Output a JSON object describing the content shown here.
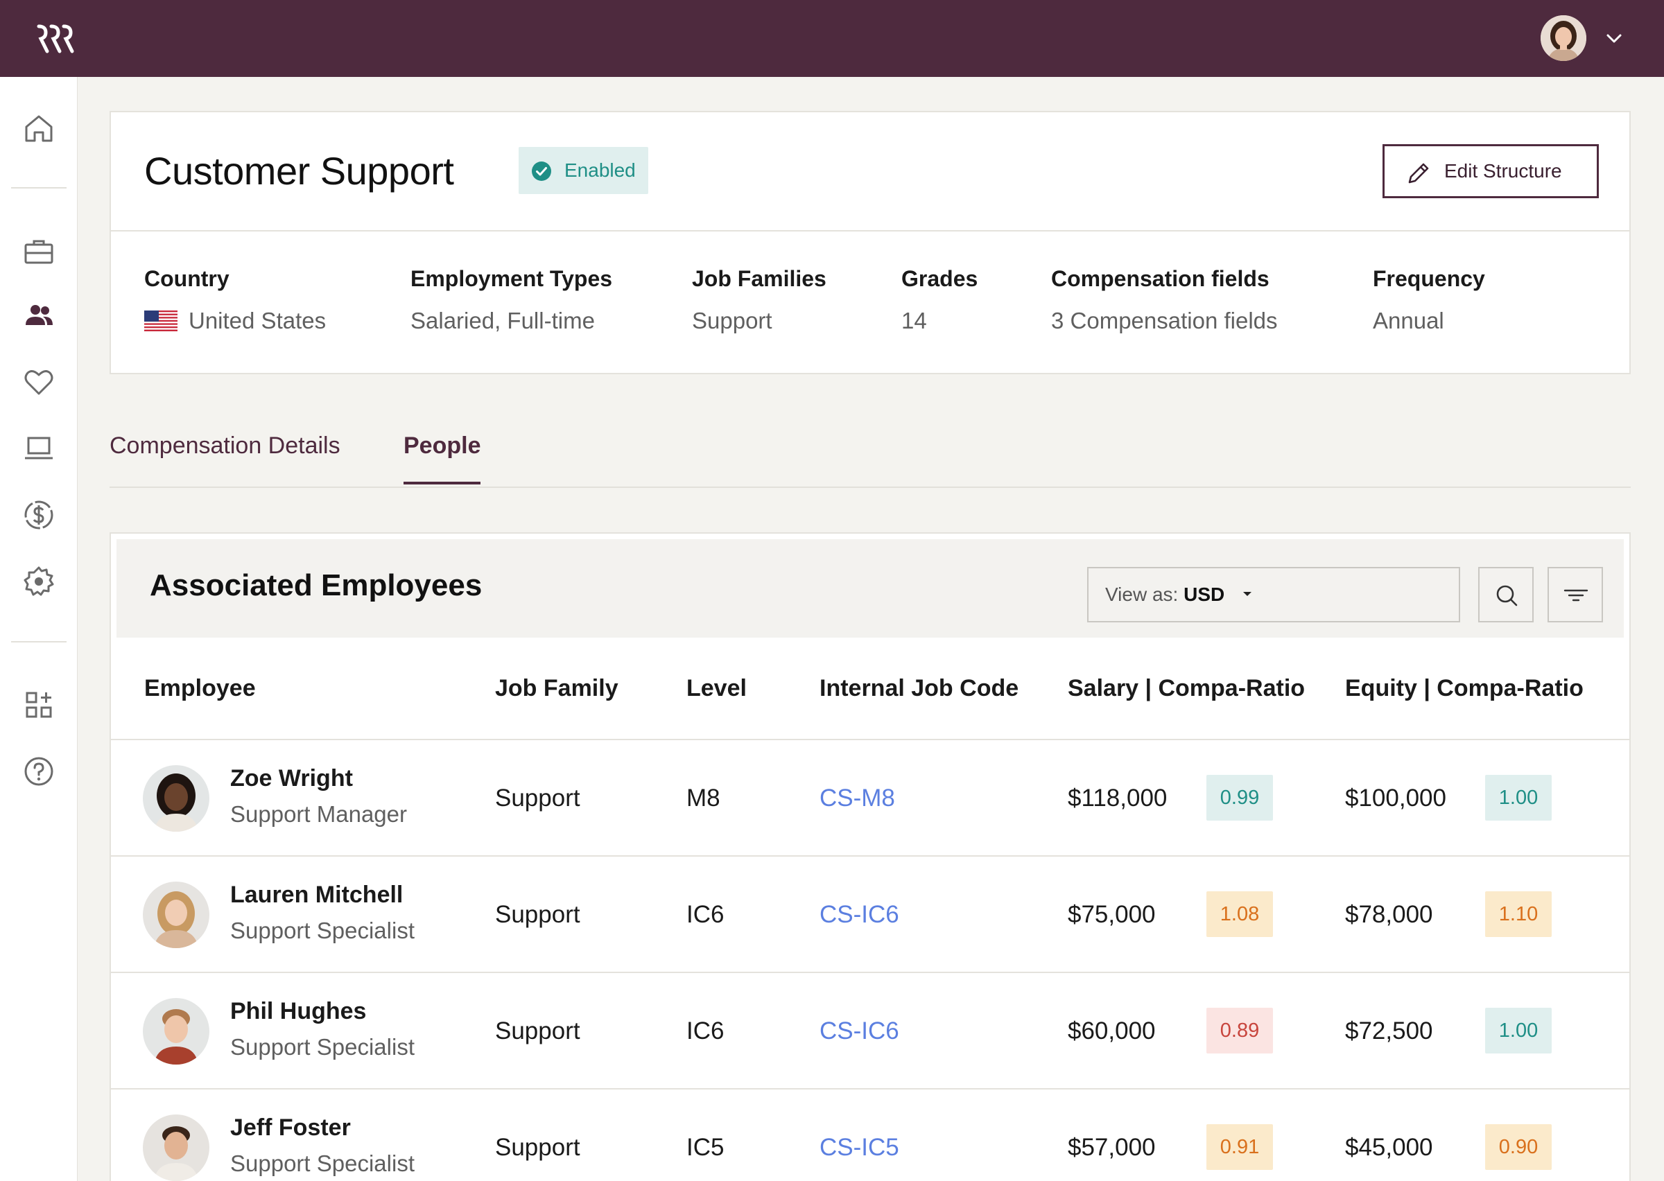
{
  "header": {
    "logo_icon": "rippling-logo-icon",
    "avatar_icon": "user-avatar",
    "menu_icon": "chevron-down-icon",
    "bar_color": "#4e2a3e"
  },
  "sidebar": {
    "items": [
      {
        "icon": "home-icon"
      },
      {
        "icon": "briefcase-icon"
      },
      {
        "icon": "people-icon"
      },
      {
        "icon": "heart-icon"
      },
      {
        "icon": "laptop-icon"
      },
      {
        "icon": "dollar-circle-icon"
      },
      {
        "icon": "gear-icon"
      },
      {
        "icon": "apps-add-icon"
      },
      {
        "icon": "help-icon"
      }
    ]
  },
  "structure": {
    "title": "Customer Support",
    "status": "Enabled",
    "edit_label": "Edit Structure",
    "meta": [
      {
        "label": "Country",
        "value": "United States"
      },
      {
        "label": "Employment Types",
        "value": "Salaried, Full-time"
      },
      {
        "label": "Job Families",
        "value": "Support"
      },
      {
        "label": "Grades",
        "value": "14"
      },
      {
        "label": "Compensation fields",
        "value": "3 Compensation fields"
      },
      {
        "label": "Frequency",
        "value": "Annual"
      }
    ]
  },
  "tabs": [
    {
      "label": "Compensation Details",
      "active": false
    },
    {
      "label": "People",
      "active": true
    }
  ],
  "employees": {
    "title": "Associated Employees",
    "view_as_label": "View as:",
    "currency": "USD",
    "columns": [
      "Employee",
      "Job Family",
      "Level",
      "Internal Job Code",
      "Salary | Compa-Ratio",
      "Equity | Compa-Ratio"
    ],
    "rows": [
      {
        "name": "Zoe Wright",
        "title": "Support Manager",
        "family": "Support",
        "level": "M8",
        "code": "CS-M8",
        "salary": "$118,000",
        "salary_ratio": "0.99",
        "salary_tone": "teal",
        "equity": "$100,000",
        "equity_ratio": "1.00",
        "equity_tone": "teal"
      },
      {
        "name": "Lauren Mitchell",
        "title": "Support Specialist",
        "family": "Support",
        "level": "IC6",
        "code": "CS-IC6",
        "salary": "$75,000",
        "salary_ratio": "1.08",
        "salary_tone": "amber",
        "equity": "$78,000",
        "equity_ratio": "1.10",
        "equity_tone": "amber"
      },
      {
        "name": "Phil Hughes",
        "title": "Support Specialist",
        "family": "Support",
        "level": "IC6",
        "code": "CS-IC6",
        "salary": "$60,000",
        "salary_ratio": "0.89",
        "salary_tone": "red",
        "equity": "$72,500",
        "equity_ratio": "1.00",
        "equity_tone": "teal"
      },
      {
        "name": "Jeff Foster",
        "title": "Support Specialist",
        "family": "Support",
        "level": "IC5",
        "code": "CS-IC5",
        "salary": "$57,000",
        "salary_ratio": "0.91",
        "salary_tone": "amber",
        "equity": "$45,000",
        "equity_ratio": "0.90",
        "equity_tone": "amber"
      }
    ]
  },
  "colors": {
    "teal": "#1f8f86",
    "amber": "#d9701c",
    "red": "#c8453d",
    "link": "#5b7fe0"
  }
}
